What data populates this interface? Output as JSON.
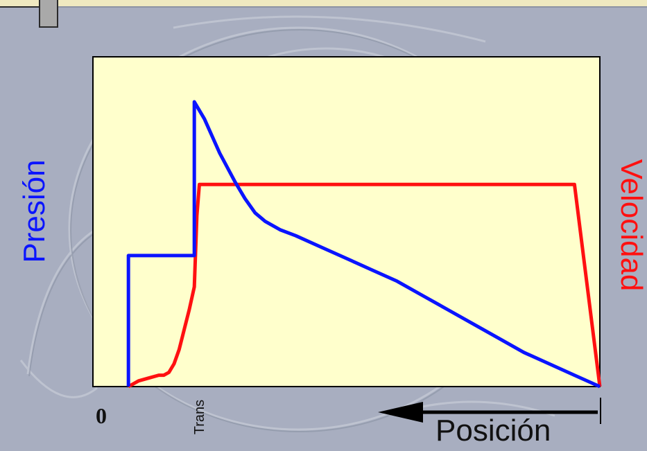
{
  "chart_data": {
    "type": "line",
    "xlabel": "Posición",
    "ylabel_left": "Presión",
    "ylabel_right": "Velocidad",
    "x_ticks": [
      "0",
      "Trans"
    ],
    "x_direction": "right-to-left arrow",
    "xlim": [
      0,
      100
    ],
    "ylim": [
      0,
      100
    ],
    "series": [
      {
        "name": "Presión",
        "color": "#0a14ff",
        "x": [
          7,
          7,
          20,
          20,
          22,
          25,
          28,
          30,
          32,
          34,
          37,
          40,
          45,
          50,
          55,
          60,
          65,
          70,
          75,
          80,
          85,
          90,
          95,
          100
        ],
        "y": [
          0,
          46,
          46,
          100,
          94,
          82,
          72,
          66,
          61,
          58,
          55,
          53,
          49,
          45,
          41,
          37,
          32,
          27,
          22,
          17,
          12,
          8,
          4,
          0
        ]
      },
      {
        "name": "Velocidad",
        "color": "#ff1010",
        "x": [
          7,
          9,
          11,
          13,
          14,
          15,
          16,
          17,
          18,
          19,
          20,
          20.5,
          21,
          95,
          100
        ],
        "y": [
          0,
          2,
          3,
          4,
          4,
          5,
          8,
          13,
          20,
          27,
          35,
          60,
          71,
          71,
          0
        ]
      }
    ]
  }
}
